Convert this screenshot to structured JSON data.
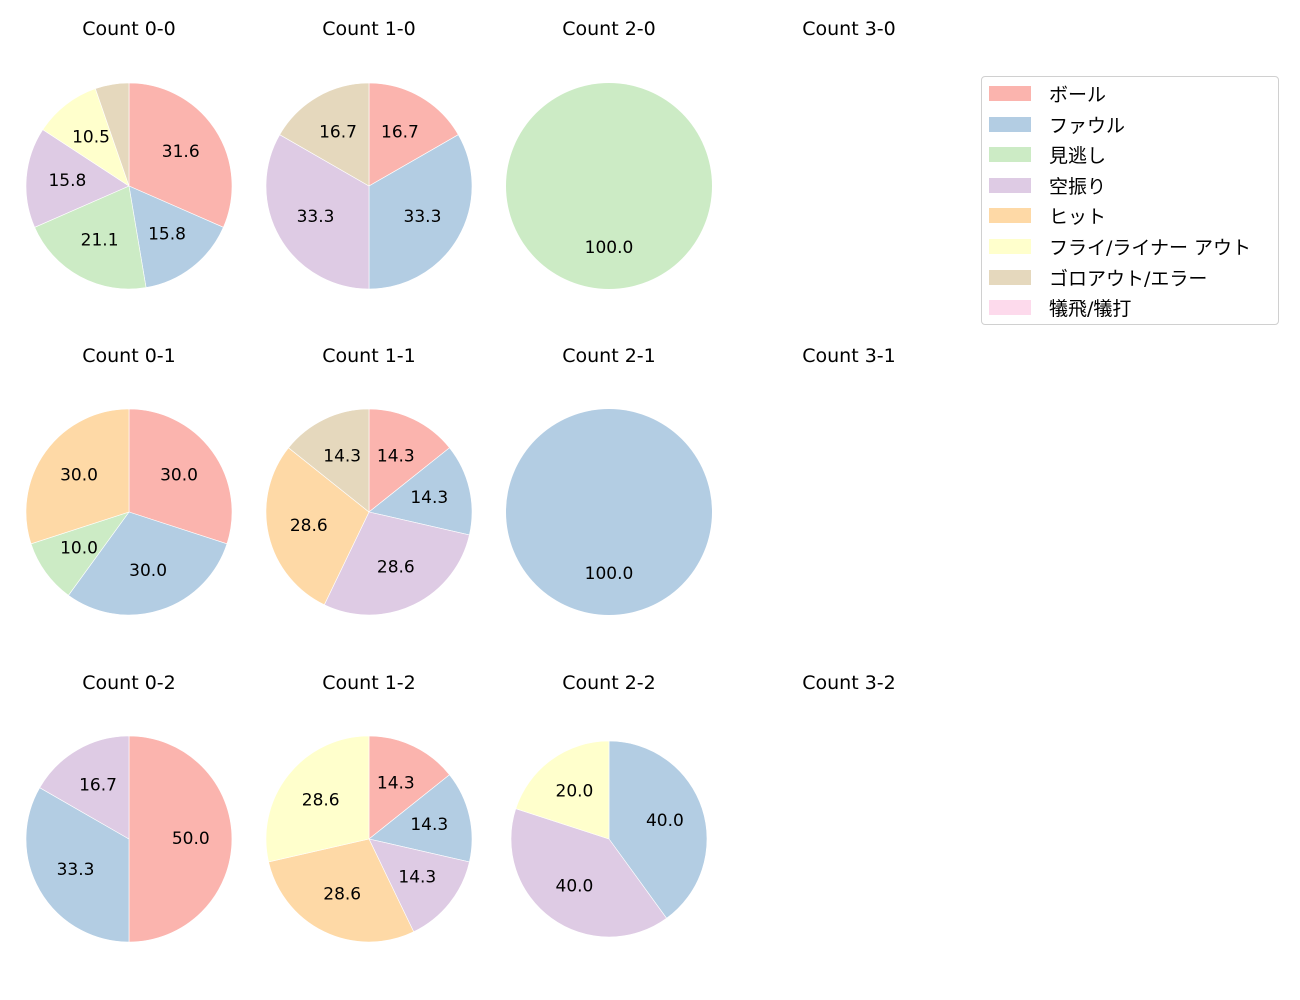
{
  "legend": {
    "items": [
      {
        "label": "ボール",
        "color": "#fbb4ae"
      },
      {
        "label": "ファウル",
        "color": "#b3cde3"
      },
      {
        "label": "見逃し",
        "color": "#ccebc5"
      },
      {
        "label": "空振り",
        "color": "#decbe4"
      },
      {
        "label": "ヒット",
        "color": "#fed9a6"
      },
      {
        "label": "フライ/ライナー アウト",
        "color": "#ffffcc"
      },
      {
        "label": "ゴロアウト/エラー",
        "color": "#e5d8bd"
      },
      {
        "label": "犠飛/犠打",
        "color": "#fddaec"
      }
    ]
  },
  "chart_data": {
    "type": "pie",
    "categories": [
      "ボール",
      "ファウル",
      "見逃し",
      "空振り",
      "ヒット",
      "フライ/ライナー アウト",
      "ゴロアウト/エラー",
      "犠飛/犠打"
    ],
    "colors": [
      "#fbb4ae",
      "#b3cde3",
      "#ccebc5",
      "#decbe4",
      "#fed9a6",
      "#ffffcc",
      "#e5d8bd",
      "#fddaec"
    ],
    "start_angle": 90,
    "direction": "clockwise",
    "label_format": "%.1f",
    "charts": [
      {
        "title": "Count 0-0",
        "row": 0,
        "col": 0,
        "values": [
          31.6,
          15.8,
          21.1,
          15.8,
          0,
          10.5,
          5.3,
          0
        ],
        "labels_shown": [
          31.6,
          15.8,
          21.1,
          15.8,
          10.5
        ]
      },
      {
        "title": "Count 1-0",
        "row": 0,
        "col": 1,
        "values": [
          16.7,
          33.3,
          0,
          33.3,
          0,
          0,
          16.7,
          0
        ]
      },
      {
        "title": "Count 2-0",
        "row": 0,
        "col": 2,
        "values": [
          0,
          0,
          100.0,
          0,
          0,
          0,
          0,
          0
        ]
      },
      {
        "title": "Count 3-0",
        "row": 0,
        "col": 3,
        "values": []
      },
      {
        "title": "Count 0-1",
        "row": 1,
        "col": 0,
        "values": [
          30.0,
          30.0,
          10.0,
          0,
          30.0,
          0,
          0,
          0
        ]
      },
      {
        "title": "Count 1-1",
        "row": 1,
        "col": 1,
        "values": [
          14.3,
          14.3,
          0,
          28.6,
          28.6,
          0,
          14.3,
          0
        ]
      },
      {
        "title": "Count 2-1",
        "row": 1,
        "col": 2,
        "values": [
          0,
          100.0,
          0,
          0,
          0,
          0,
          0,
          0
        ]
      },
      {
        "title": "Count 3-1",
        "row": 1,
        "col": 3,
        "values": []
      },
      {
        "title": "Count 0-2",
        "row": 2,
        "col": 0,
        "values": [
          50.0,
          33.3,
          0,
          16.7,
          0,
          0,
          0,
          0
        ]
      },
      {
        "title": "Count 1-2",
        "row": 2,
        "col": 1,
        "values": [
          14.3,
          14.3,
          0,
          14.3,
          28.6,
          28.6,
          0,
          0
        ]
      },
      {
        "title": "Count 2-2",
        "row": 2,
        "col": 2,
        "values": [
          0,
          40.0,
          0,
          40.0,
          0,
          20.0,
          0,
          0
        ]
      },
      {
        "title": "Count 3-2",
        "row": 2,
        "col": 3,
        "values": []
      }
    ]
  }
}
